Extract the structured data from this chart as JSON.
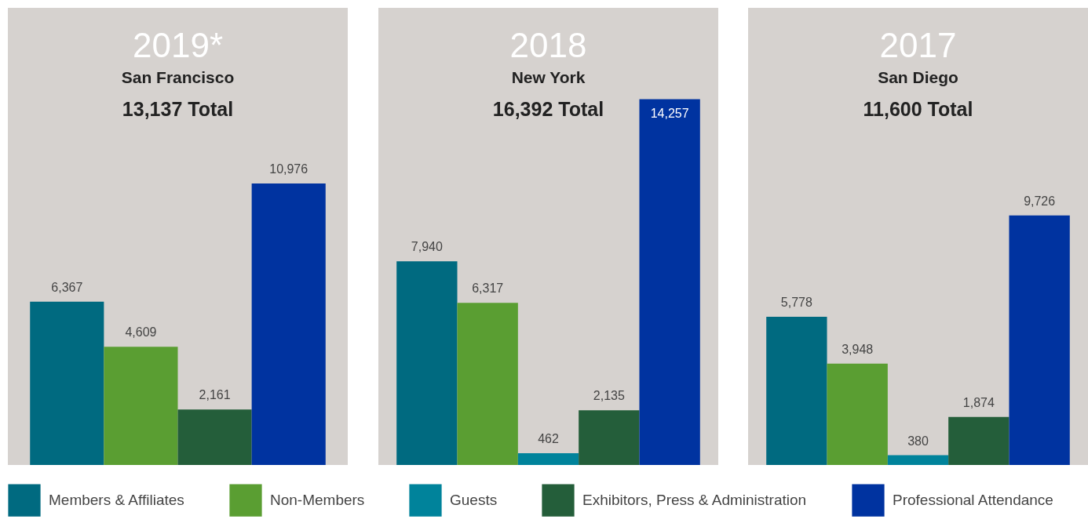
{
  "chart_data": [
    {
      "type": "bar",
      "title": "2019*",
      "subtitle": "San Francisco",
      "annotations": [
        "13,137 Total"
      ],
      "categories": [
        null
      ],
      "series": [
        {
          "color": "#006a80",
          "values": [
            6367
          ],
          "value_labels": [
            "6,367"
          ]
        },
        {
          "color": "#5a9e32",
          "values": [
            4609
          ],
          "value_labels": [
            "4,609"
          ]
        },
        {
          "color": "#245e3a",
          "values": [
            2161
          ],
          "value_labels": [
            "2,161"
          ]
        },
        {
          "color": "#0033a0",
          "values": [
            10976
          ],
          "value_labels": [
            "10,976"
          ]
        }
      ]
    },
    {
      "type": "bar",
      "title": "2018",
      "subtitle": "New York",
      "annotations": [
        "16,392 Total"
      ],
      "categories": [
        null
      ],
      "legend": "bottom",
      "series": [
        {
          "name": "Members & Affiliates",
          "color": "#006a80",
          "values": [
            7940
          ],
          "value_labels": [
            "7,940"
          ]
        },
        {
          "name": "Non-Members",
          "color": "#5a9e32",
          "values": [
            6317
          ],
          "value_labels": [
            "6,317"
          ]
        },
        {
          "name": "Guests",
          "color": "#00839b",
          "values": [
            462
          ],
          "value_labels": [
            "462"
          ]
        },
        {
          "name": "Exhibitors, Press & Administration",
          "color": "#245e3a",
          "values": [
            2135
          ],
          "value_labels": [
            "2,135"
          ]
        },
        {
          "name": "Professional Attendance",
          "color": "#0033a0",
          "values": [
            14257
          ],
          "value_labels": [
            "14,257"
          ]
        }
      ]
    },
    {
      "type": "bar",
      "title": "2017",
      "subtitle": "San Diego",
      "annotations": [
        "11,600 Total"
      ],
      "categories": [
        null
      ],
      "series": [
        {
          "color": "#006a80",
          "values": [
            5778
          ],
          "value_labels": [
            "5,778"
          ]
        },
        {
          "color": "#5a9e32",
          "values": [
            3948
          ],
          "value_labels": [
            "3,948"
          ]
        },
        {
          "color": "#00839b",
          "values": [
            380
          ],
          "value_labels": [
            "380"
          ]
        },
        {
          "color": "#245e3a",
          "values": [
            1874
          ],
          "value_labels": [
            "1,874"
          ]
        },
        {
          "color": "#0033a0",
          "values": [
            9726
          ],
          "value_labels": [
            "9,726"
          ]
        }
      ]
    }
  ]
}
